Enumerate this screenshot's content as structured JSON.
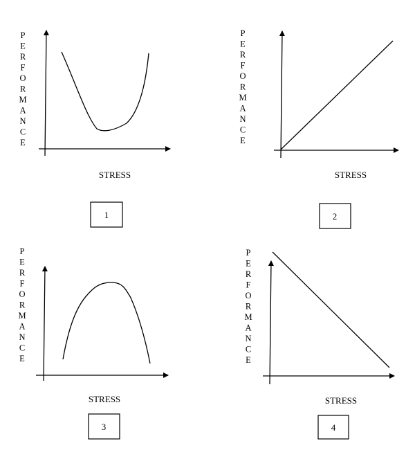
{
  "panels": [
    {
      "number": "1",
      "ylabel": "PERFORMANCE",
      "xlabel": "STRESS"
    },
    {
      "number": "2",
      "ylabel": "PERFORMANCE",
      "xlabel": "STRESS"
    },
    {
      "number": "3",
      "ylabel": "PERFORMANCE",
      "xlabel": "STRESS"
    },
    {
      "number": "4",
      "ylabel": "PERFORMANCE",
      "xlabel": "STRESS"
    }
  ]
}
